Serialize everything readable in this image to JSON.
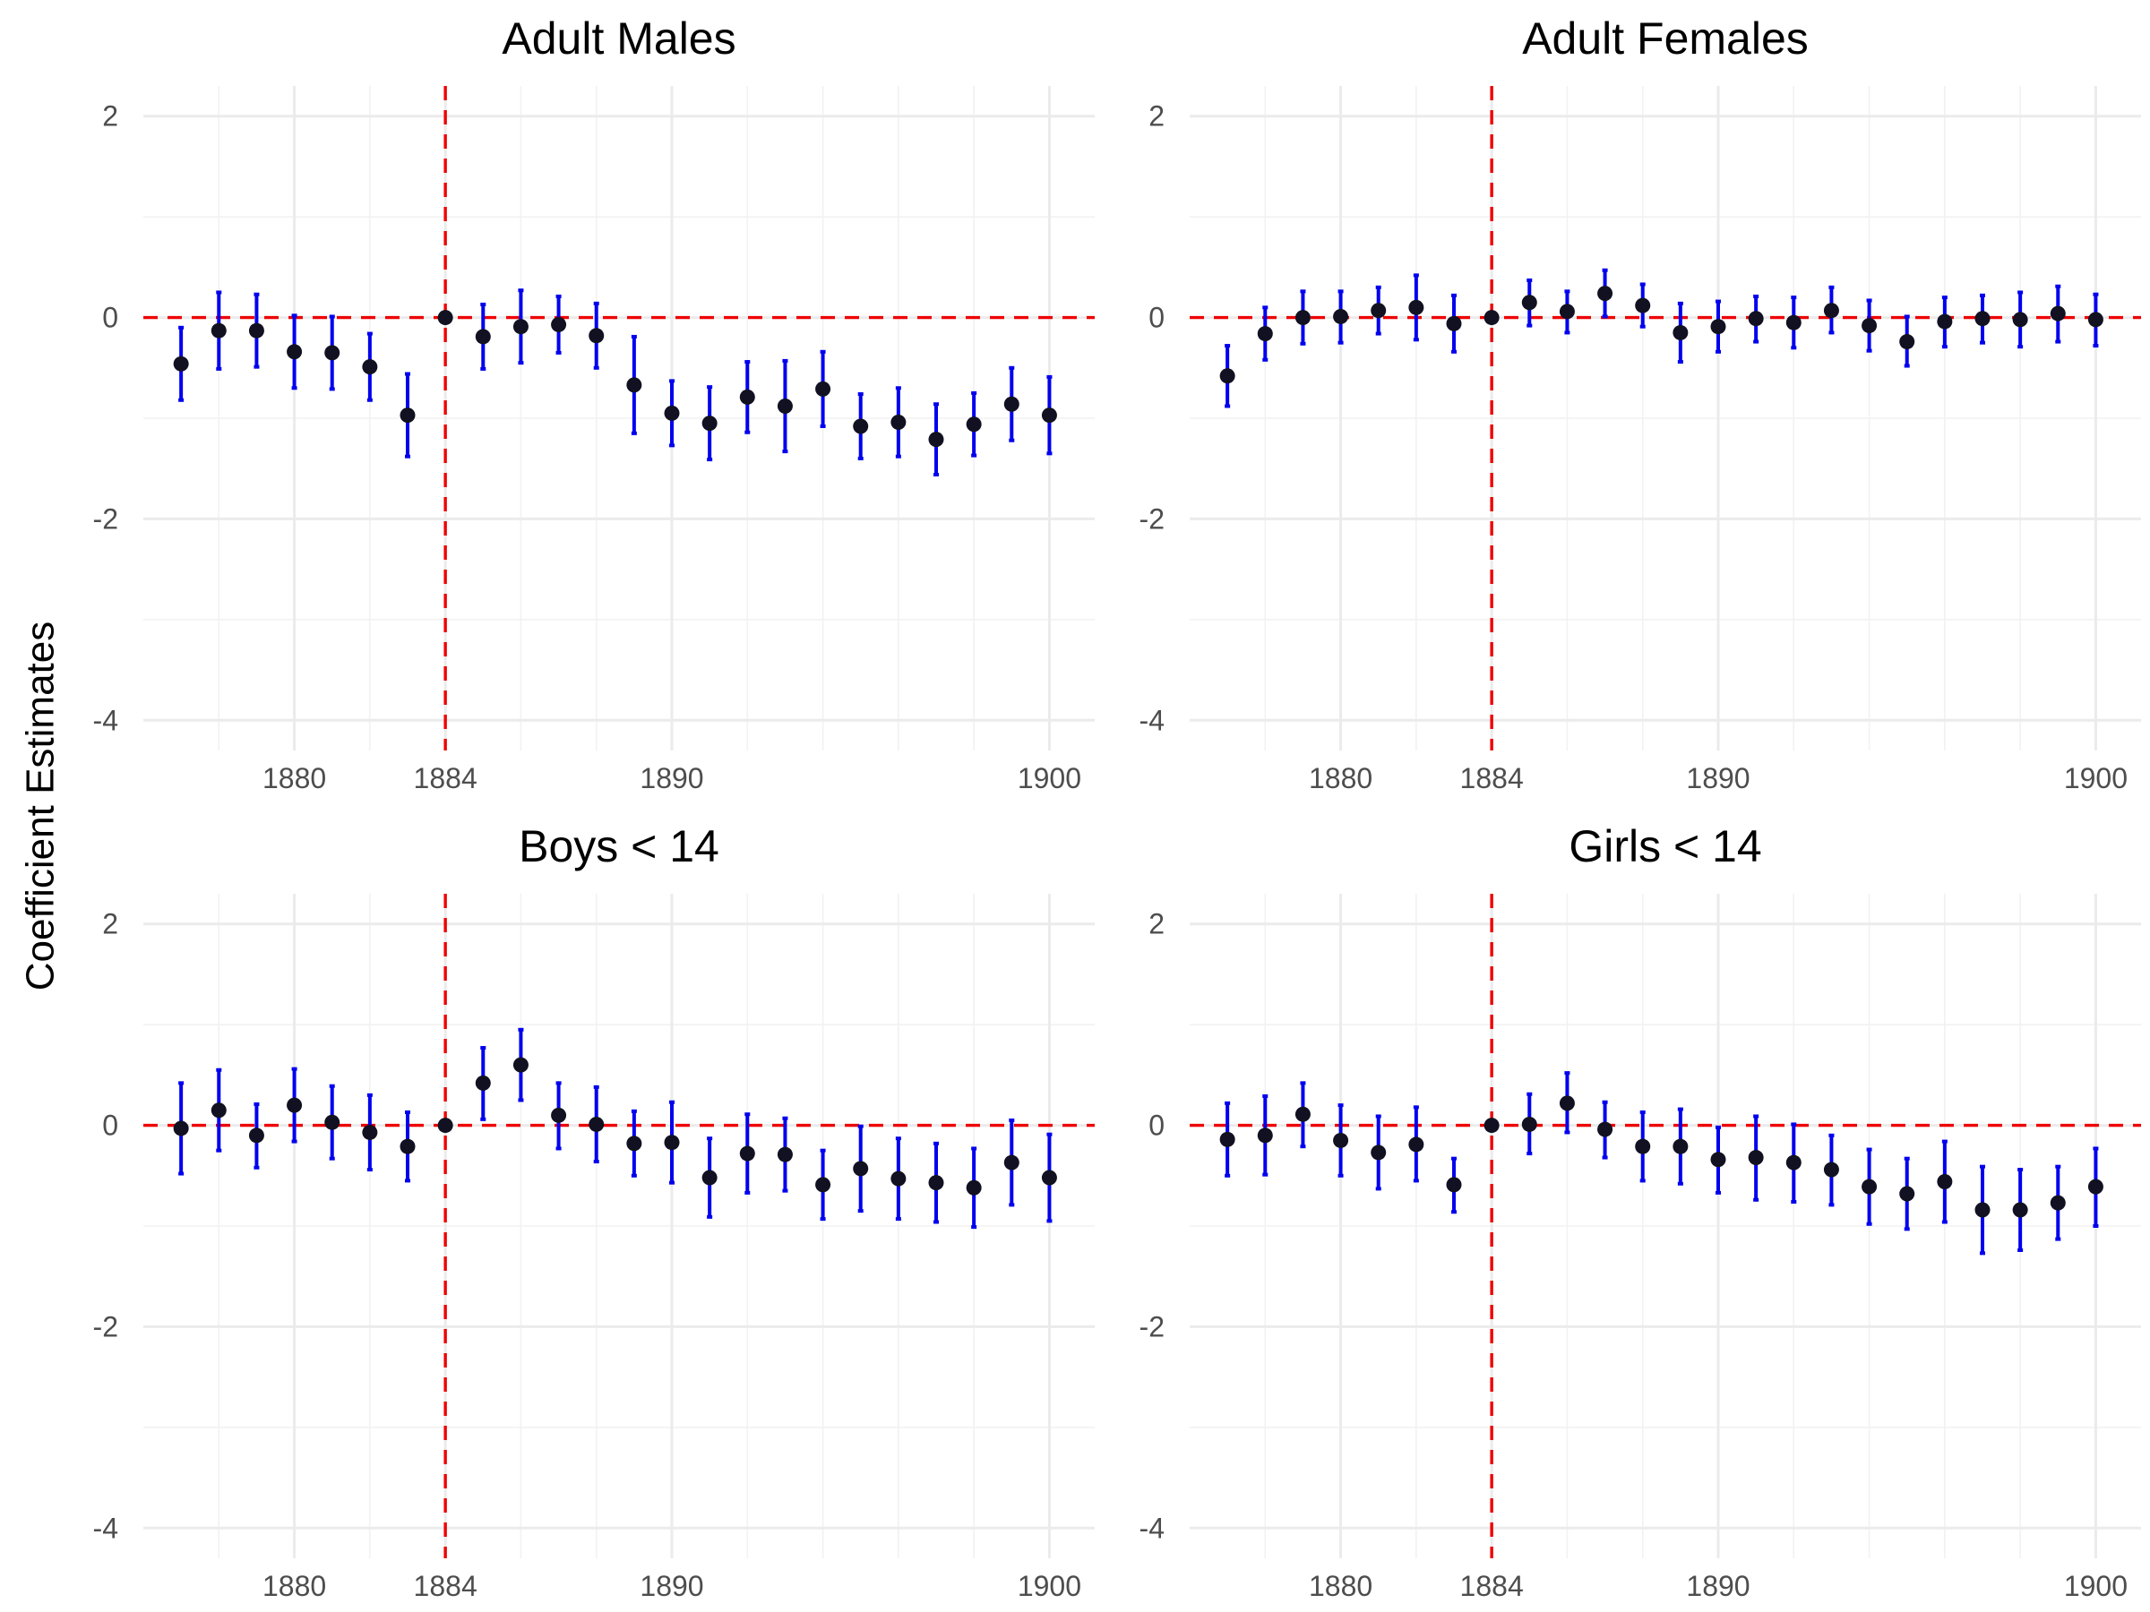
{
  "ylabel": "Coefficient Estimates",
  "colors": {
    "point": "#111122",
    "errorbar": "#0000ee",
    "refline": "#ee0000",
    "grid_major": "#ebebeb",
    "grid_minor": "#f2f2f2",
    "tick_text": "#4d4d4d"
  },
  "chart_data": [
    {
      "type": "scatter",
      "title": "Adult Males",
      "x": [
        1877,
        1878,
        1879,
        1880,
        1881,
        1882,
        1883,
        1884,
        1885,
        1886,
        1887,
        1888,
        1889,
        1890,
        1891,
        1892,
        1893,
        1894,
        1895,
        1896,
        1897,
        1898,
        1899,
        1900
      ],
      "y": [
        -0.46,
        -0.13,
        -0.13,
        -0.34,
        -0.35,
        -0.49,
        -0.97,
        0,
        -0.19,
        -0.09,
        -0.07,
        -0.18,
        -0.67,
        -0.95,
        -1.05,
        -0.79,
        -0.88,
        -0.71,
        -1.08,
        -1.04,
        -1.21,
        -1.06,
        -0.86,
        -0.97
      ],
      "ci_low": [
        -0.82,
        -0.51,
        -0.49,
        -0.7,
        -0.71,
        -0.82,
        -1.38,
        0,
        -0.51,
        -0.45,
        -0.35,
        -0.5,
        -1.15,
        -1.27,
        -1.41,
        -1.14,
        -1.33,
        -1.08,
        -1.4,
        -1.38,
        -1.56,
        -1.37,
        -1.22,
        -1.35
      ],
      "ci_high": [
        -0.1,
        0.25,
        0.23,
        0.02,
        0.01,
        -0.16,
        -0.56,
        0,
        0.13,
        0.27,
        0.21,
        0.14,
        -0.19,
        -0.63,
        -0.69,
        -0.44,
        -0.43,
        -0.34,
        -0.76,
        -0.7,
        -0.86,
        -0.75,
        -0.5,
        -0.59
      ],
      "xticks": [
        1880,
        1884,
        1890,
        1900
      ],
      "yticks": [
        2,
        0,
        -2,
        -4
      ],
      "xlim": [
        1876,
        1901.2
      ],
      "ylim": [
        -4.3,
        2.3
      ],
      "reference_lines": {
        "vertical_x": 1884,
        "horizontal_y": 0
      },
      "grid": true
    },
    {
      "type": "scatter",
      "title": "Adult Females",
      "x": [
        1877,
        1878,
        1879,
        1880,
        1881,
        1882,
        1883,
        1884,
        1885,
        1886,
        1887,
        1888,
        1889,
        1890,
        1891,
        1892,
        1893,
        1894,
        1895,
        1896,
        1897,
        1898,
        1899,
        1900
      ],
      "y": [
        -0.58,
        -0.16,
        0,
        0.01,
        0.07,
        0.1,
        -0.06,
        0,
        0.15,
        0.06,
        0.24,
        0.12,
        -0.15,
        -0.09,
        -0.01,
        -0.05,
        0.07,
        -0.08,
        -0.24,
        -0.04,
        -0.01,
        -0.02,
        0.04,
        -0.02
      ],
      "ci_low": [
        -0.88,
        -0.42,
        -0.26,
        -0.25,
        -0.16,
        -0.22,
        -0.34,
        0,
        -0.08,
        -0.15,
        0.01,
        -0.09,
        -0.44,
        -0.34,
        -0.24,
        -0.3,
        -0.15,
        -0.33,
        -0.48,
        -0.29,
        -0.25,
        -0.29,
        -0.24,
        -0.28
      ],
      "ci_high": [
        -0.28,
        0.1,
        0.26,
        0.26,
        0.3,
        0.42,
        0.22,
        0,
        0.37,
        0.26,
        0.47,
        0.33,
        0.14,
        0.16,
        0.21,
        0.2,
        0.3,
        0.17,
        0.01,
        0.2,
        0.22,
        0.25,
        0.31,
        0.23
      ],
      "xticks": [
        1880,
        1884,
        1890,
        1900
      ],
      "yticks": [
        2,
        0,
        -2,
        -4
      ],
      "xlim": [
        1876,
        1901.2
      ],
      "ylim": [
        -4.3,
        2.3
      ],
      "reference_lines": {
        "vertical_x": 1884,
        "horizontal_y": 0
      },
      "grid": true
    },
    {
      "type": "scatter",
      "title": "Boys < 14",
      "x": [
        1877,
        1878,
        1879,
        1880,
        1881,
        1882,
        1883,
        1884,
        1885,
        1886,
        1887,
        1888,
        1889,
        1890,
        1891,
        1892,
        1893,
        1894,
        1895,
        1896,
        1897,
        1898,
        1899,
        1900
      ],
      "y": [
        -0.03,
        0.15,
        -0.1,
        0.2,
        0.03,
        -0.07,
        -0.21,
        0,
        0.42,
        0.6,
        0.1,
        0.01,
        -0.18,
        -0.17,
        -0.52,
        -0.28,
        -0.29,
        -0.59,
        -0.43,
        -0.53,
        -0.57,
        -0.62,
        -0.37,
        -0.52
      ],
      "ci_low": [
        -0.48,
        -0.25,
        -0.42,
        -0.16,
        -0.33,
        -0.44,
        -0.55,
        0,
        0.06,
        0.25,
        -0.23,
        -0.36,
        -0.5,
        -0.57,
        -0.91,
        -0.67,
        -0.65,
        -0.93,
        -0.85,
        -0.93,
        -0.96,
        -1.01,
        -0.79,
        -0.95
      ],
      "ci_high": [
        0.42,
        0.55,
        0.21,
        0.56,
        0.39,
        0.3,
        0.13,
        0,
        0.77,
        0.95,
        0.42,
        0.38,
        0.14,
        0.23,
        -0.13,
        0.11,
        0.07,
        -0.25,
        -0.01,
        -0.13,
        -0.18,
        -0.23,
        0.05,
        -0.09
      ],
      "xticks": [
        1880,
        1884,
        1890,
        1900
      ],
      "yticks": [
        2,
        0,
        -2,
        -4
      ],
      "xlim": [
        1876,
        1901.2
      ],
      "ylim": [
        -4.3,
        2.3
      ],
      "reference_lines": {
        "vertical_x": 1884,
        "horizontal_y": 0
      },
      "grid": true
    },
    {
      "type": "scatter",
      "title": "Girls < 14",
      "x": [
        1877,
        1878,
        1879,
        1880,
        1881,
        1882,
        1883,
        1884,
        1885,
        1886,
        1887,
        1888,
        1889,
        1890,
        1891,
        1892,
        1893,
        1894,
        1895,
        1896,
        1897,
        1898,
        1899,
        1900
      ],
      "y": [
        -0.14,
        -0.1,
        0.11,
        -0.15,
        -0.27,
        -0.19,
        -0.59,
        0,
        0.01,
        0.22,
        -0.04,
        -0.21,
        -0.21,
        -0.34,
        -0.32,
        -0.37,
        -0.44,
        -0.61,
        -0.68,
        -0.56,
        -0.84,
        -0.84,
        -0.77,
        -0.61
      ],
      "ci_low": [
        -0.5,
        -0.49,
        -0.21,
        -0.5,
        -0.63,
        -0.55,
        -0.86,
        0,
        -0.28,
        -0.07,
        -0.32,
        -0.55,
        -0.58,
        -0.67,
        -0.74,
        -0.76,
        -0.79,
        -0.98,
        -1.03,
        -0.96,
        -1.27,
        -1.24,
        -1.13,
        -1.0
      ],
      "ci_high": [
        0.22,
        0.29,
        0.42,
        0.2,
        0.09,
        0.18,
        -0.33,
        0,
        0.31,
        0.52,
        0.23,
        0.13,
        0.16,
        -0.02,
        0.09,
        0.01,
        -0.1,
        -0.24,
        -0.33,
        -0.16,
        -0.41,
        -0.44,
        -0.41,
        -0.23
      ],
      "xticks": [
        1880,
        1884,
        1890,
        1900
      ],
      "yticks": [
        2,
        0,
        -2,
        -4
      ],
      "xlim": [
        1876,
        1901.2
      ],
      "ylim": [
        -4.3,
        2.3
      ],
      "reference_lines": {
        "vertical_x": 1884,
        "horizontal_y": 0
      },
      "grid": true
    }
  ]
}
